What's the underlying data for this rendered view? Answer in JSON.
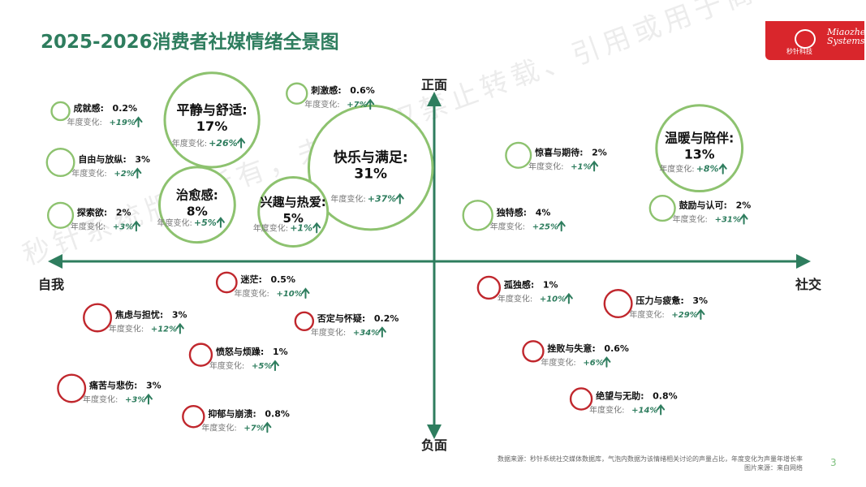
{
  "header": {
    "title": "2025-2026消费者社媒情绪全景图",
    "logo_cn": "秒针科技",
    "logo_en_line1": "Miaozhen",
    "logo_en_line2": "Systems"
  },
  "watermark": "秒针系统版权所有，未经授权禁止转载、引用或用于商业用途",
  "footer": {
    "source": "数据来源：秒针系统社交媒体数据库，气泡内数据为该情绪相关讨论的声量占比，年度变化为声量年增长率",
    "image_source": "图片来源：来自网络",
    "page": "3"
  },
  "colors": {
    "positive": "#8dc26f",
    "negative": "#c0272d",
    "axis": "#2e7d5e",
    "title": "#2e7d5e",
    "arrow": "#2e7d5e"
  },
  "chart_data": {
    "type": "bubble",
    "axis_labels": {
      "top": "正面",
      "bottom": "负面",
      "left": "自我",
      "right": "社交"
    },
    "x_range": [
      -100,
      100
    ],
    "y_range": [
      -100,
      100
    ],
    "change_prefix": "年度变化:",
    "bubbles": [
      {
        "name": "平静与舒适",
        "share": "17%",
        "change": "+26%",
        "sentiment": "positive",
        "big": true,
        "x": -58,
        "y": 78
      },
      {
        "name": "快乐与满足",
        "share": "31%",
        "change": "+37%",
        "sentiment": "positive",
        "big": true,
        "x": -15,
        "y": 51
      },
      {
        "name": "温暖与陪伴",
        "share": "13%",
        "change": "+8%",
        "sentiment": "positive",
        "big": true,
        "x": 74,
        "y": 62
      },
      {
        "name": "治愈感",
        "share": "8%",
        "change": "+5%",
        "sentiment": "positive",
        "big": true,
        "x": -62,
        "y": 30
      },
      {
        "name": "兴趣与热爱",
        "share": "5%",
        "change": "+1%",
        "sentiment": "positive",
        "big": true,
        "x": -36,
        "y": 26
      },
      {
        "name": "成就感",
        "share": "0.2%",
        "change": "+19%",
        "sentiment": "positive",
        "big": false,
        "x": -99,
        "y": 83
      },
      {
        "name": "自由与放纵",
        "share": "3%",
        "change": "+2%",
        "sentiment": "positive",
        "big": false,
        "x": -99,
        "y": 54
      },
      {
        "name": "探索欲",
        "share": "2%",
        "change": "+3%",
        "sentiment": "positive",
        "big": false,
        "x": -99,
        "y": 24
      },
      {
        "name": "刺激感",
        "share": "0.6%",
        "change": "+7%",
        "sentiment": "positive",
        "big": false,
        "x": -35,
        "y": 93
      },
      {
        "name": "惊喜与期待",
        "share": "2%",
        "change": "+1%",
        "sentiment": "positive",
        "big": false,
        "x": 25,
        "y": 58
      },
      {
        "name": "独特感",
        "share": "4%",
        "change": "+25%",
        "sentiment": "positive",
        "big": false,
        "x": 14,
        "y": 24
      },
      {
        "name": "鼓励与认可",
        "share": "2%",
        "change": "+31%",
        "sentiment": "positive",
        "big": false,
        "x": 64,
        "y": 28
      },
      {
        "name": "迷茫",
        "share": "0.5%",
        "change": "+10%",
        "sentiment": "negative",
        "big": false,
        "x": -54,
        "y": -14
      },
      {
        "name": "焦虑与担忧",
        "share": "3%",
        "change": "+12%",
        "sentiment": "negative",
        "big": false,
        "x": -89,
        "y": -34
      },
      {
        "name": "否定与怀疑",
        "share": "0.2%",
        "change": "+34%",
        "sentiment": "negative",
        "big": false,
        "x": -33,
        "y": -36
      },
      {
        "name": "愤怒与烦躁",
        "share": "1%",
        "change": "+5%",
        "sentiment": "negative",
        "big": false,
        "x": -61,
        "y": -55
      },
      {
        "name": "痛苦与悲伤",
        "share": "3%",
        "change": "+3%",
        "sentiment": "negative",
        "big": false,
        "x": -96,
        "y": -74
      },
      {
        "name": "抑郁与崩溃",
        "share": "0.8%",
        "change": "+7%",
        "sentiment": "negative",
        "big": false,
        "x": -63,
        "y": -90
      },
      {
        "name": "孤独感",
        "share": "1%",
        "change": "+10%",
        "sentiment": "negative",
        "big": false,
        "x": 17,
        "y": -17
      },
      {
        "name": "压力与疲惫",
        "share": "3%",
        "change": "+29%",
        "sentiment": "negative",
        "big": false,
        "x": 52,
        "y": -26
      },
      {
        "name": "挫败与失意",
        "share": "0.6%",
        "change": "+6%",
        "sentiment": "negative",
        "big": false,
        "x": 29,
        "y": -53
      },
      {
        "name": "绝望与无助",
        "share": "0.8%",
        "change": "+14%",
        "sentiment": "negative",
        "big": false,
        "x": 42,
        "y": -80
      }
    ]
  }
}
